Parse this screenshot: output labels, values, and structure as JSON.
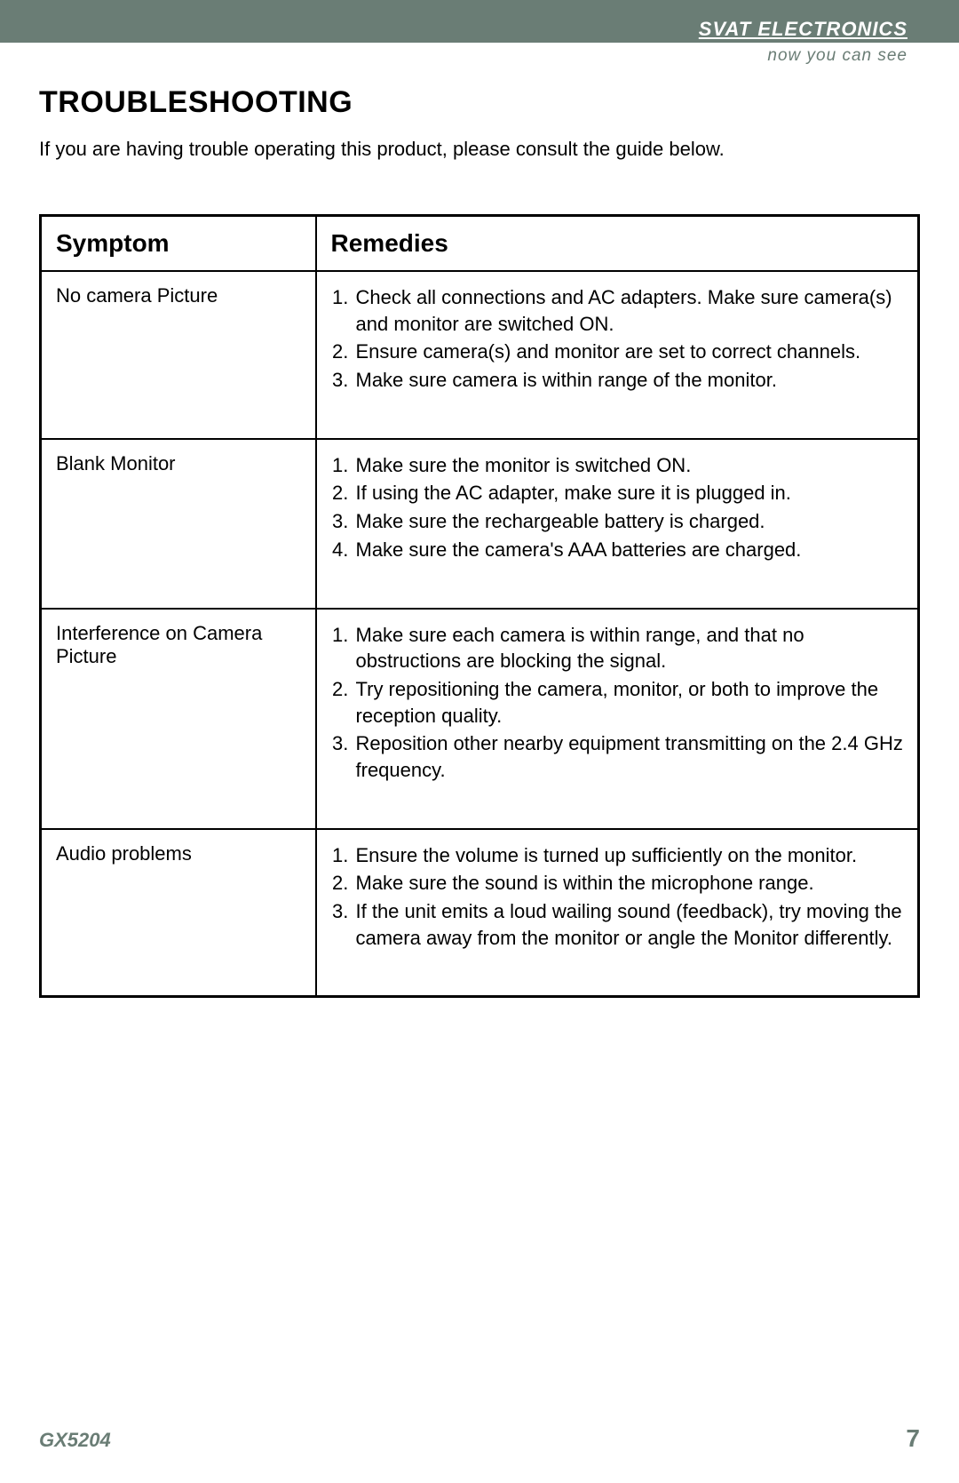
{
  "header": {
    "brand": "SVAT ELECTRONICS",
    "tagline": "now you can see",
    "bar_color": "#6a7d75"
  },
  "page": {
    "title": "TROUBLESHOOTING",
    "intro": "If you are having trouble operating this product, please consult the guide below."
  },
  "table": {
    "columns": [
      "Symptom",
      "Remedies"
    ],
    "rows": [
      {
        "symptom": "No camera Picture",
        "remedies": [
          "Check all connections and AC adapters. Make sure camera(s) and monitor are switched ON.",
          "Ensure camera(s) and monitor are set to correct channels.",
          "Make sure camera is within range of the monitor."
        ]
      },
      {
        "symptom": "Blank Monitor",
        "remedies": [
          "Make sure the monitor is switched ON.",
          "If using the AC adapter, make sure it is plugged in.",
          "Make sure the rechargeable battery is charged.",
          "Make sure the camera's AAA batteries are charged."
        ]
      },
      {
        "symptom": "Interference on Camera Picture",
        "remedies": [
          "Make sure each camera is within range, and that no obstructions are blocking the signal.",
          "Try  repositioning the camera, monitor, or both to improve the reception quality.",
          "Reposition other nearby equipment transmitting on the 2.4 GHz frequency."
        ]
      },
      {
        "symptom": "Audio problems",
        "remedies": [
          "Ensure the volume is turned up sufficiently on the monitor.",
          "Make sure the sound is within the microphone range.",
          "If the unit emits a loud wailing sound (feedback), try moving the camera away from the monitor or angle the Monitor differently."
        ]
      }
    ]
  },
  "footer": {
    "model": "GX5204",
    "page_number": "7"
  }
}
